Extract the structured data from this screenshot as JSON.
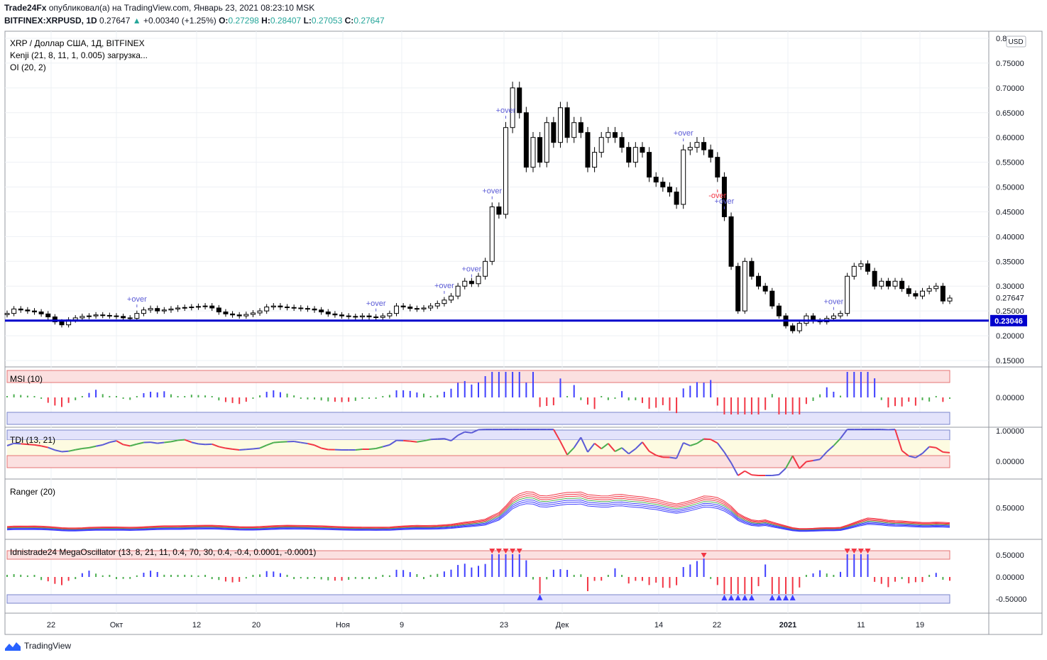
{
  "header": {
    "author": "Trade24Fx",
    "published": "опубликовал(а) на TradingView.com, Январь 23, 2021 08:23:10 MSK",
    "symbol": "BITFINEX:XRPUSD, 1D",
    "last": "0.27647",
    "change": "+0.00340 (+1.25%)",
    "o_label": "O:",
    "o": "0.27298",
    "h_label": "H:",
    "h": "0.28407",
    "l_label": "L:",
    "l": "0.27053",
    "c_label": "C:",
    "c": "0.27647"
  },
  "legend": {
    "title": "XRP / Доллар США, 1Д, BITFINEX",
    "kenji": "Kenji (21, 8, 11, 1, 0.005) загрузка...",
    "oi": "OI (20, 2)",
    "msi": "MSI (10)",
    "tdi": "TDI (13, 21)",
    "ranger": "Ranger (20)",
    "mega": "Idnistrade24 MegaOscillator (13, 8, 21, 11, 0.4, 70, 30, 0.4, -0.4, 0.0001, -0.0001)"
  },
  "currency": "USD",
  "footer": {
    "brand": "TradingView"
  },
  "colors": {
    "up": "#ffffff",
    "down": "#000000",
    "blue": "#0000cc",
    "red": "#f23645",
    "green": "#4caf50",
    "hist_blue": "#3f3fff"
  },
  "chart_data": {
    "type": "candlestick",
    "price_axis": {
      "min": 0.13,
      "max": 0.8,
      "ticks": [
        "0.8",
        "0.75000",
        "0.70000",
        "0.65000",
        "0.60000",
        "0.55000",
        "0.50000",
        "0.45000",
        "0.40000",
        "0.35000",
        "0.30000",
        "0.25000",
        "0.20000",
        "0.15000"
      ]
    },
    "current_price_label": "0.27647",
    "support_line": {
      "value": 0.23046,
      "label": "0.23046"
    },
    "x_labels": [
      "22",
      "Окт",
      "12",
      "20",
      "Ноя",
      "9",
      "23",
      "Дек",
      "14",
      "22",
      "2021",
      "11",
      "19"
    ],
    "close": [
      0.245,
      0.254,
      0.252,
      0.25,
      0.248,
      0.244,
      0.238,
      0.228,
      0.222,
      0.232,
      0.236,
      0.239,
      0.24,
      0.242,
      0.241,
      0.24,
      0.239,
      0.236,
      0.235,
      0.245,
      0.252,
      0.255,
      0.25,
      0.252,
      0.254,
      0.256,
      0.257,
      0.258,
      0.259,
      0.26,
      0.256,
      0.248,
      0.244,
      0.242,
      0.24,
      0.243,
      0.246,
      0.25,
      0.258,
      0.26,
      0.258,
      0.257,
      0.256,
      0.255,
      0.254,
      0.252,
      0.248,
      0.244,
      0.242,
      0.24,
      0.239,
      0.238,
      0.24,
      0.238,
      0.237,
      0.24,
      0.245,
      0.26,
      0.258,
      0.255,
      0.254,
      0.256,
      0.26,
      0.265,
      0.272,
      0.28,
      0.3,
      0.31,
      0.305,
      0.32,
      0.35,
      0.46,
      0.445,
      0.62,
      0.7,
      0.65,
      0.54,
      0.6,
      0.55,
      0.63,
      0.59,
      0.66,
      0.6,
      0.63,
      0.61,
      0.54,
      0.57,
      0.6,
      0.61,
      0.6,
      0.58,
      0.55,
      0.58,
      0.57,
      0.52,
      0.51,
      0.5,
      0.49,
      0.465,
      0.575,
      0.58,
      0.59,
      0.575,
      0.56,
      0.52,
      0.44,
      0.34,
      0.25,
      0.35,
      0.32,
      0.3,
      0.29,
      0.26,
      0.24,
      0.22,
      0.21,
      0.225,
      0.24,
      0.23,
      0.228,
      0.235,
      0.24,
      0.245,
      0.32,
      0.34,
      0.345,
      0.33,
      0.3,
      0.31,
      0.3,
      0.31,
      0.295,
      0.285,
      0.28,
      0.29,
      0.295,
      0.3,
      0.27,
      0.276
    ],
    "msi_axis": {
      "ticks": [
        "0.00000"
      ]
    },
    "tdi_axis": {
      "ticks": [
        "1.00000",
        "0.00000"
      ]
    },
    "ranger_axis": {
      "ticks": [
        "0.50000"
      ]
    },
    "mega_axis": {
      "ticks": [
        "0.50000",
        "0.00000",
        "-0.50000"
      ]
    },
    "over_labels": [
      {
        "text": "+over",
        "i": 19
      },
      {
        "text": "+over",
        "i": 54
      },
      {
        "text": "+over",
        "i": 64
      },
      {
        "text": "+over",
        "i": 68
      },
      {
        "text": "+over",
        "i": 71
      },
      {
        "text": "+over",
        "i": 73
      },
      {
        "text": "+over",
        "i": 99
      },
      {
        "text": "+over",
        "i": 105
      },
      {
        "text": "-over",
        "i": 104
      },
      {
        "text": "+over",
        "i": 121
      }
    ]
  }
}
